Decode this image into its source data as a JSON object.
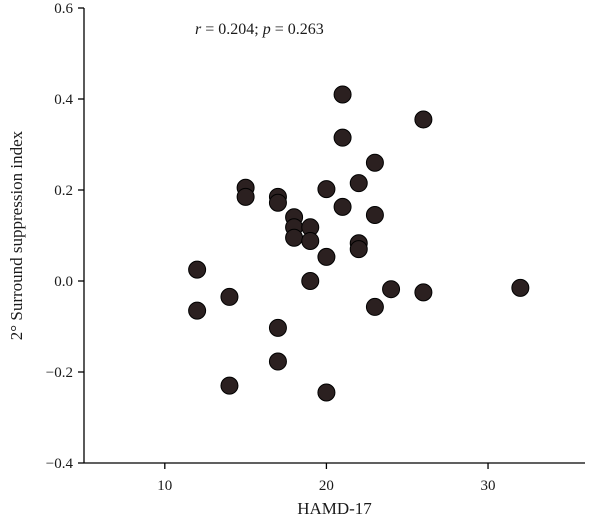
{
  "chart_data": {
    "type": "scatter",
    "xlabel": "HAMD-17",
    "ylabel": "2° Surround suppression index",
    "xlim": [
      5,
      36
    ],
    "ylim": [
      -0.4,
      0.6
    ],
    "xticks": [
      10,
      20,
      30
    ],
    "yticks": [
      -0.4,
      -0.2,
      0.0,
      0.2,
      0.4,
      0.6
    ],
    "ytick_labels": [
      "−0.4",
      "−0.2",
      "0.0",
      "0.2",
      "0.4",
      "0.6"
    ],
    "xtick_labels": [
      "10",
      "20",
      "30"
    ],
    "grid": false,
    "annotation": {
      "r_symbol": "r",
      "r_value": " = 0.204; ",
      "p_symbol": "p",
      "p_value": " = 0.263"
    },
    "points": [
      {
        "x": 12,
        "y": 0.025
      },
      {
        "x": 12,
        "y": -0.065
      },
      {
        "x": 14,
        "y": -0.035
      },
      {
        "x": 14,
        "y": -0.23
      },
      {
        "x": 15,
        "y": 0.205
      },
      {
        "x": 15,
        "y": 0.185
      },
      {
        "x": 17,
        "y": 0.185
      },
      {
        "x": 17,
        "y": 0.172
      },
      {
        "x": 17,
        "y": -0.103
      },
      {
        "x": 17,
        "y": -0.177
      },
      {
        "x": 18,
        "y": 0.14
      },
      {
        "x": 18,
        "y": 0.118
      },
      {
        "x": 18,
        "y": 0.095
      },
      {
        "x": 19,
        "y": 0.118
      },
      {
        "x": 19,
        "y": 0.088
      },
      {
        "x": 19,
        "y": 0.0
      },
      {
        "x": 20,
        "y": 0.202
      },
      {
        "x": 20,
        "y": 0.053
      },
      {
        "x": 20,
        "y": -0.245
      },
      {
        "x": 21,
        "y": 0.41
      },
      {
        "x": 21,
        "y": 0.315
      },
      {
        "x": 21,
        "y": 0.163
      },
      {
        "x": 22,
        "y": 0.215
      },
      {
        "x": 22,
        "y": 0.083
      },
      {
        "x": 22,
        "y": 0.07
      },
      {
        "x": 23,
        "y": 0.26
      },
      {
        "x": 23,
        "y": 0.145
      },
      {
        "x": 23,
        "y": -0.057
      },
      {
        "x": 24,
        "y": -0.018
      },
      {
        "x": 26,
        "y": 0.355
      },
      {
        "x": 26,
        "y": -0.025
      },
      {
        "x": 32,
        "y": -0.015
      }
    ],
    "marker_color": "#2b2020",
    "marker_edge_color": "#000000"
  }
}
